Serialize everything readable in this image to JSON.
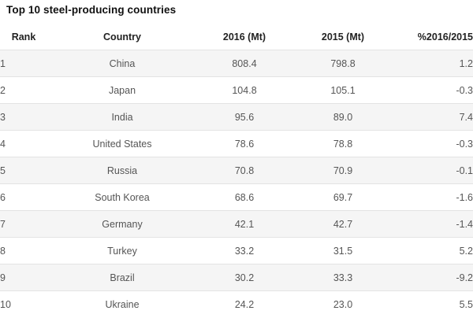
{
  "table": {
    "title": "Top 10 steel-producing countries",
    "headers": {
      "rank": "Rank",
      "country": "Country",
      "y2016": "2016 (Mt)",
      "y2015": "2015 (Mt)",
      "change": "%2016/2015"
    },
    "rows": [
      {
        "rank": "1",
        "country": "China",
        "y2016": "808.4",
        "y2015": "798.8",
        "change": "1.2"
      },
      {
        "rank": "2",
        "country": "Japan",
        "y2016": "104.8",
        "y2015": "105.1",
        "change": "-0.3"
      },
      {
        "rank": "3",
        "country": "India",
        "y2016": "95.6",
        "y2015": "89.0",
        "change": "7.4"
      },
      {
        "rank": "4",
        "country": "United States",
        "y2016": "78.6",
        "y2015": "78.8",
        "change": "-0.3"
      },
      {
        "rank": "5",
        "country": "Russia",
        "y2016": "70.8",
        "y2015": "70.9",
        "change": "-0.1"
      },
      {
        "rank": "6",
        "country": "South Korea",
        "y2016": "68.6",
        "y2015": "69.7",
        "change": "-1.6"
      },
      {
        "rank": "7",
        "country": "Germany",
        "y2016": "42.1",
        "y2015": "42.7",
        "change": "-1.4"
      },
      {
        "rank": "8",
        "country": "Turkey",
        "y2016": "33.2",
        "y2015": "31.5",
        "change": "5.2"
      },
      {
        "rank": "9",
        "country": "Brazil",
        "y2016": "30.2",
        "y2015": "33.3",
        "change": "-9.2"
      },
      {
        "rank": "10",
        "country": "Ukraine",
        "y2016": "24.2",
        "y2015": "23.0",
        "change": "5.5"
      }
    ]
  }
}
